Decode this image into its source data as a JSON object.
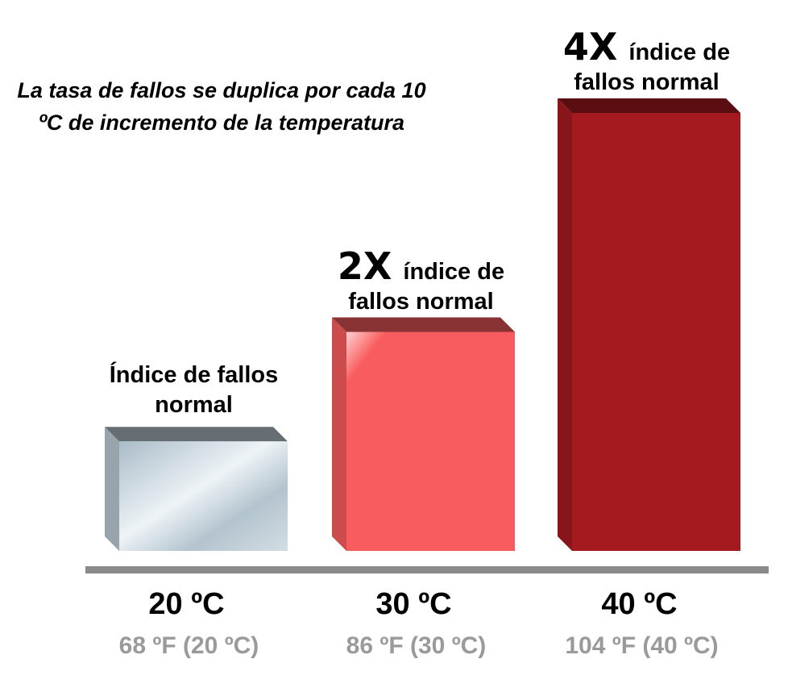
{
  "chart_data": {
    "type": "bar",
    "title": "La tasa de fallos se duplica por cada 10 ºC de incremento de la temperatura",
    "categories": [
      "20 ºC",
      "30 ºC",
      "40 ºC"
    ],
    "subcategories": [
      "68 ºF (20 ºC)",
      "86 ºF (30 ºC)",
      "104 ºF (40 ºC)"
    ],
    "values": [
      1,
      2,
      4
    ],
    "value_labels": [
      null,
      "2X",
      "4X"
    ],
    "annotations": [
      "Índice de fallos normal",
      "índice de fallos normal",
      "índice de fallos normal"
    ],
    "colors": [
      "#b9c8d1",
      "#f95c5e",
      "#a51a1f"
    ]
  }
}
